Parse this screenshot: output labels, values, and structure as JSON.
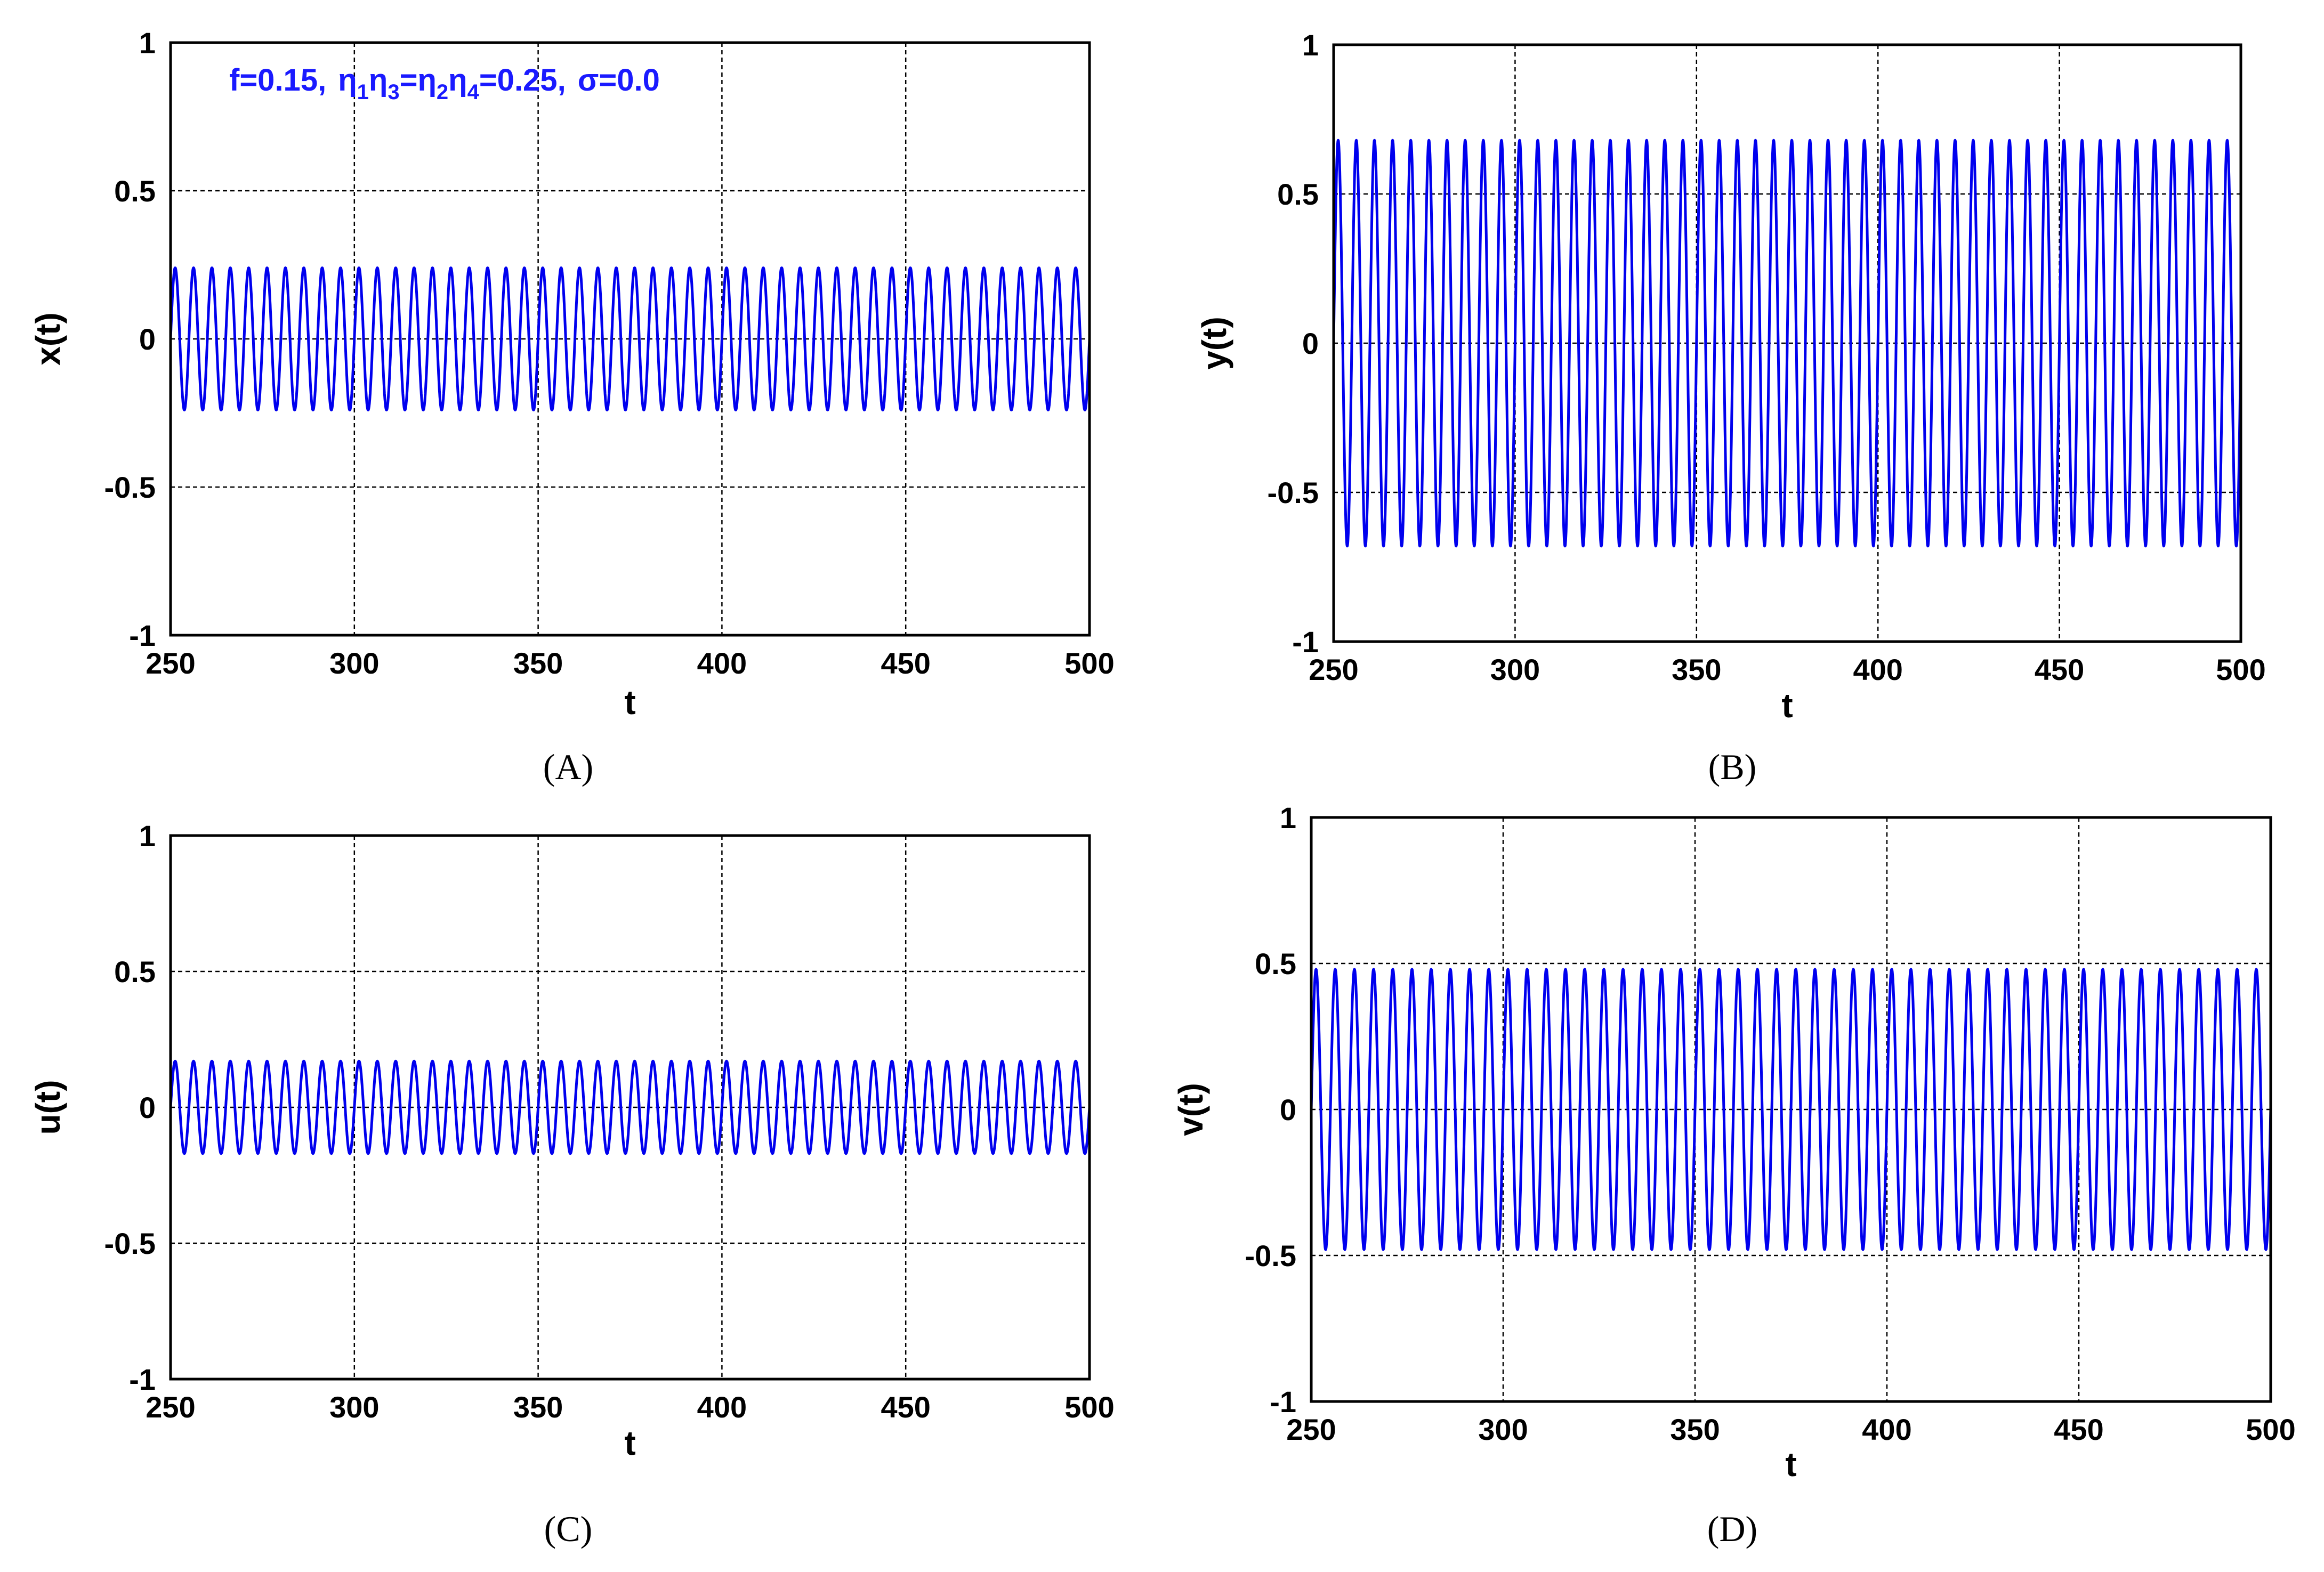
{
  "annotation": {
    "f": "f=0.15,",
    "eta": "η",
    "sub1": "1",
    "sub3": "3",
    "sub2": "2",
    "sub4": "4",
    "eta_value": "=0.25,",
    "sigma": "σ=0.0",
    "eq": "="
  },
  "colors": {
    "series": "#0000ee",
    "grid": "#000000",
    "frame": "#000000"
  },
  "chart_data": [
    {
      "type": "line",
      "panel_label": "(A)",
      "xlabel": "t",
      "ylabel": "x(t)",
      "xlim": [
        250,
        500
      ],
      "ylim": [
        -1,
        1
      ],
      "xticks": [
        "250",
        "300",
        "350",
        "400",
        "450",
        "500"
      ],
      "yticks": [
        "-1",
        "-0.5",
        "0",
        "0.5",
        "1"
      ],
      "grid": true,
      "series": [
        {
          "amplitude": 0.24,
          "period": 5,
          "phase_deg": 0,
          "t_start": 250,
          "t_end": 500
        }
      ]
    },
    {
      "type": "line",
      "panel_label": "(B)",
      "xlabel": "t",
      "ylabel": "y(t)",
      "xlim": [
        250,
        500
      ],
      "ylim": [
        -1,
        1
      ],
      "xticks": [
        "250",
        "300",
        "350",
        "400",
        "450",
        "500"
      ],
      "yticks": [
        "-1",
        "-0.5",
        "0",
        "0.5",
        "1"
      ],
      "grid": true,
      "series": [
        {
          "amplitude": 0.68,
          "period": 5,
          "phase_deg": 0,
          "t_start": 250,
          "t_end": 500
        }
      ]
    },
    {
      "type": "line",
      "panel_label": "(C)",
      "xlabel": "t",
      "ylabel": "u(t)",
      "xlim": [
        250,
        500
      ],
      "ylim": [
        -1,
        1
      ],
      "xticks": [
        "250",
        "300",
        "350",
        "400",
        "450",
        "500"
      ],
      "yticks": [
        "-1",
        "-0.5",
        "0",
        "0.5",
        "1"
      ],
      "grid": true,
      "series": [
        {
          "amplitude": 0.17,
          "period": 5,
          "phase_deg": 0,
          "t_start": 250,
          "t_end": 500
        }
      ]
    },
    {
      "type": "line",
      "panel_label": "(D)",
      "xlabel": "t",
      "ylabel": "v(t)",
      "xlim": [
        250,
        500
      ],
      "ylim": [
        -1,
        1
      ],
      "xticks": [
        "250",
        "300",
        "350",
        "400",
        "450",
        "500"
      ],
      "yticks": [
        "-1",
        "-0.5",
        "0",
        "0.5",
        "1"
      ],
      "grid": true,
      "series": [
        {
          "amplitude": 0.48,
          "period": 5,
          "phase_deg": 0,
          "t_start": 250,
          "t_end": 500
        }
      ]
    }
  ]
}
